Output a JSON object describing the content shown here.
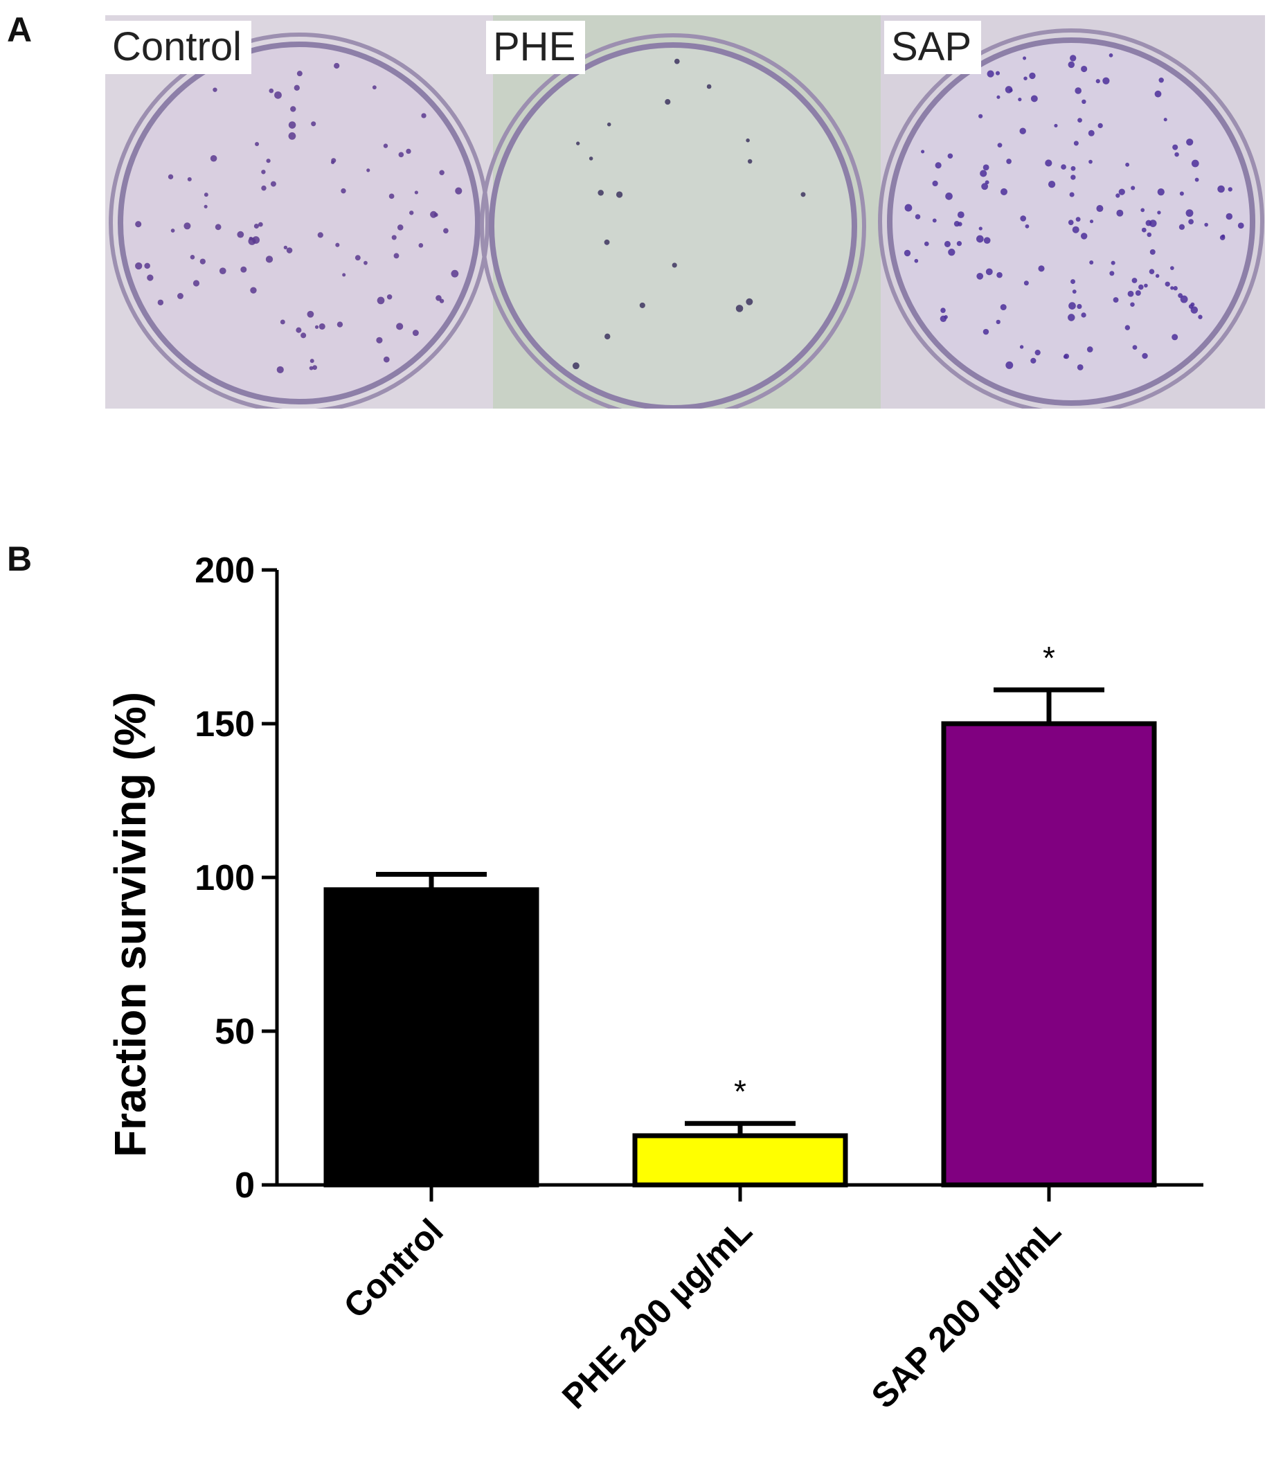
{
  "panels": {
    "a_label": "A",
    "b_label": "B"
  },
  "dishes": [
    {
      "label": "Control",
      "tint": "#d9cfe0",
      "colony_color": "#5b3a8f"
    },
    {
      "label": "PHE",
      "tint": "#cfd6cf",
      "colony_color": "#3e3560"
    },
    {
      "label": "SAP",
      "tint": "#d7cfe2",
      "colony_color": "#4c2f9a"
    }
  ],
  "chart_data": {
    "type": "bar",
    "categories": [
      "Control",
      "PHE 200 µg/mL",
      "SAP 200 µg/mL"
    ],
    "values": [
      96,
      16,
      150
    ],
    "errors": [
      5,
      4,
      11
    ],
    "colors": [
      "#000000",
      "#ffff00",
      "#800080"
    ],
    "significance": [
      "",
      "*",
      "*"
    ],
    "ylabel": "Fraction surviving (%)",
    "ylim": [
      0,
      200
    ],
    "yticks": [
      0,
      50,
      100,
      150,
      200
    ],
    "grid": false
  }
}
